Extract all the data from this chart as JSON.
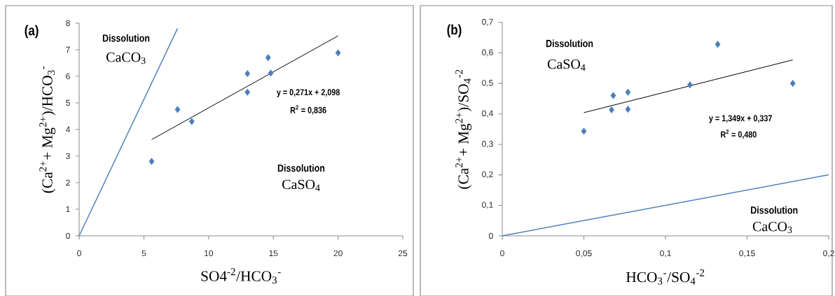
{
  "chart_data": [
    {
      "type": "scatter",
      "title": "(a)",
      "xlabel": "SO4$^{-2}$/HCO$_{3}$$^{-}$",
      "ylabel": "(Ca$^{2+}$+ Mg$^{2+}$)/HCO$_{3}$$^{-}$",
      "xlim": [
        0,
        25
      ],
      "ylim": [
        0,
        8
      ],
      "xticks": [
        0,
        5,
        10,
        15,
        20,
        25
      ],
      "yticks": [
        0,
        1,
        2,
        3,
        4,
        5,
        6,
        7,
        8
      ],
      "series": [
        {
          "marker": "diamond",
          "color": "#4a7ebb",
          "x": [
            5.6,
            7.6,
            8.7,
            13,
            13,
            14.6,
            14.8,
            20
          ],
          "values": [
            2.8,
            4.75,
            4.3,
            6.1,
            5.4,
            6.7,
            6.12,
            6.88
          ]
        },
        {
          "type": "line",
          "color": "#000000",
          "x": [
            5.6,
            20
          ],
          "values": [
            3.62,
            7.52
          ]
        },
        {
          "type": "line",
          "color": "#4f81bd",
          "x": [
            0,
            7.6
          ],
          "values": [
            0,
            7.8
          ]
        }
      ],
      "annotations": [
        "Dissolution",
        "CaCO$_{3}$",
        "y = 0,271x + 2,098",
        "R$^{2}$ = 0,836",
        "Dissolution",
        "CaSO$_{4}$"
      ]
    },
    {
      "type": "scatter",
      "title": "(b)",
      "xlabel": "HCO$_{3}$$^{-}$/SO$_{4}$$^{-2}$",
      "ylabel": "(Ca$^{2+}$+ Mg$^{2+}$)/SO$_{4}$$^{-2}$",
      "xlim": [
        0,
        0.2
      ],
      "ylim": [
        0,
        0.7
      ],
      "xticks": [
        0,
        {
          "value": 0.05,
          "label": "0,05"
        },
        {
          "value": 0.1,
          "label": "0,1"
        },
        {
          "value": 0.15,
          "label": "0,15"
        },
        {
          "value": 0.2,
          "label": "0,2"
        }
      ],
      "yticks": [
        0,
        {
          "value": 0.1,
          "label": "0,1"
        },
        {
          "value": 0.2,
          "label": "0,2"
        },
        {
          "value": 0.3,
          "label": "0,3"
        },
        {
          "value": 0.4,
          "label": "0,4"
        },
        {
          "value": 0.5,
          "label": "0,5"
        },
        {
          "value": 0.6,
          "label": "0,6"
        },
        {
          "value": 0.7,
          "label": "0,7"
        }
      ],
      "series": [
        {
          "marker": "diamond",
          "color": "#4a7ebb",
          "x": [
            0.05,
            0.067,
            0.068,
            0.077,
            0.077,
            0.115,
            0.132,
            0.178
          ],
          "values": [
            0.343,
            0.413,
            0.46,
            0.415,
            0.471,
            0.495,
            0.628,
            0.5
          ]
        },
        {
          "type": "line",
          "color": "#000000",
          "x": [
            0.05,
            0.178
          ],
          "values": [
            0.404,
            0.577
          ]
        },
        {
          "type": "line",
          "color": "#4f81bd",
          "x": [
            0,
            0.2
          ],
          "values": [
            0,
            0.2
          ]
        }
      ],
      "annotations": [
        "Dissolution",
        "CaSO$_{4}$",
        "y = 1,349x + 0,337",
        "R$^{2}$ = 0,480",
        "Dissolution",
        "CaCO$_{3}$"
      ]
    }
  ]
}
